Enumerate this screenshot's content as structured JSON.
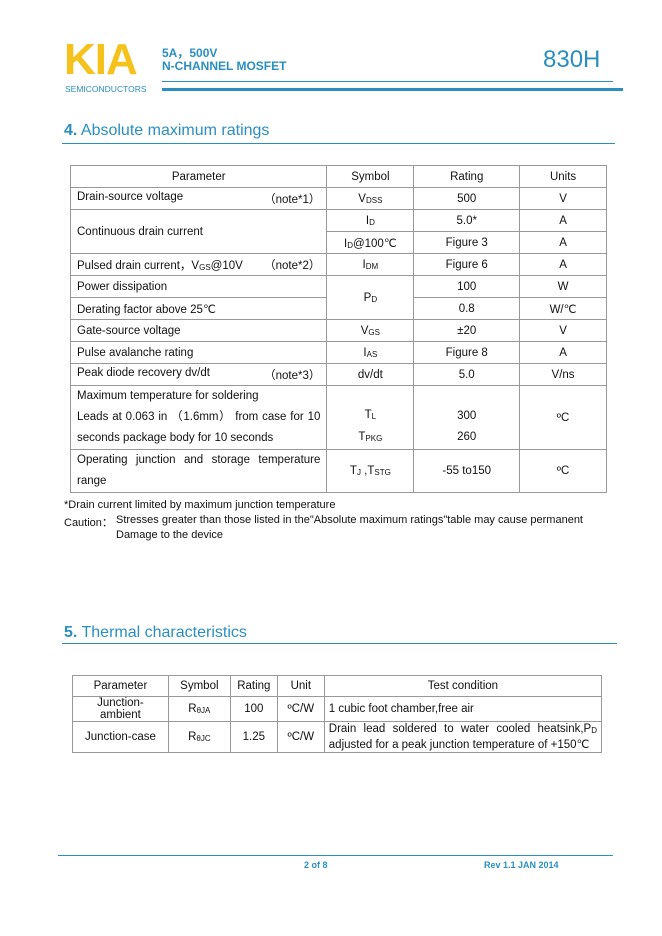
{
  "header": {
    "logo": "KIA",
    "logo_sub": "SEMICONDUCTORS",
    "line1": "5A，500V",
    "line2": "N-CHANNEL MOSFET",
    "part": "830H"
  },
  "section4": {
    "num": "4.",
    "title": "Absolute maximum ratings",
    "headers": [
      "Parameter",
      "Symbol",
      "Rating",
      "Units"
    ],
    "rows": {
      "vdss": {
        "param": "Drain-source voltage",
        "note": "（note*1）",
        "sym": "V",
        "sub": "DSS",
        "rating": "500",
        "unit": "V"
      },
      "id": {
        "param": "Continuous drain current",
        "sym": "I",
        "sub": "D",
        "rating": "5.0*",
        "unit": "A"
      },
      "id100": {
        "sym": "I",
        "sub": "D",
        "sym_tail": "@100℃",
        "rating": "Figure 3",
        "unit": "A"
      },
      "idm": {
        "param": "Pulsed drain current，V",
        "param_sub": "GS",
        "param_tail": "@10V",
        "note": "（note*2）",
        "sym": "I",
        "sub": "DM",
        "rating": "Figure 6",
        "unit": "A"
      },
      "pd": {
        "param": "Power dissipation",
        "sym": "P",
        "sub": "D",
        "rating": "100",
        "unit": "W"
      },
      "derate": {
        "param": "Derating factor above 25℃",
        "rating": "0.8",
        "unit": "W/℃"
      },
      "vgs": {
        "param": "Gate-source voltage",
        "sym": "V",
        "sub": "GS",
        "rating": "±20",
        "unit": "V"
      },
      "ias": {
        "param": "Pulse avalanche rating",
        "sym": "I",
        "sub": "AS",
        "rating": "Figure 8",
        "unit": "A"
      },
      "dvdt": {
        "param": "Peak diode recovery dv/dt",
        "note": "（note*3）",
        "sym": "dv/dt",
        "rating": "5.0",
        "unit": "V/ns"
      },
      "solder": {
        "param1": "Maximum temperature for soldering",
        "param2": "Leads at 0.063 in （1.6mm） from case for 10",
        "param3": "seconds package body for 10 seconds",
        "sym1": "T",
        "sub1": "L",
        "sym2": "T",
        "sub2": "PKG",
        "rating1": "300",
        "rating2": "260",
        "unit": "ºC"
      },
      "tj": {
        "param1": "Operating junction and storage temperature",
        "param2": "range",
        "sym1": "T",
        "sub1": "J",
        "sym_mid": " ,T",
        "sub2": "STG",
        "rating": "-55 to150",
        "unit": "ºC"
      }
    },
    "footnote": "*Drain current limited by maximum junction temperature",
    "caution_label": "Caution：",
    "caution1": "Stresses greater than those listed in the\"Absolute maximum ratings\"table may cause permanent",
    "caution2": "Damage to the device"
  },
  "section5": {
    "num": "5.",
    "title": "Thermal characteristics",
    "headers": [
      "Parameter",
      "Symbol",
      "Rating",
      "Unit",
      "Test condition"
    ],
    "rows": [
      {
        "param": "Junction-ambient",
        "sym": "R",
        "sub": "θJA",
        "rating": "100",
        "unit": "ºC/W",
        "cond": "1 cubic foot chamber,free air"
      },
      {
        "param": "Junction-case",
        "sym": "R",
        "sub": "θJC",
        "rating": "1.25",
        "unit": "ºC/W",
        "cond1": "Drain lead soldered to water cooled heatsink,P",
        "cond1_sub": "D",
        "cond2": "adjusted for a peak junction temperature of +150℃"
      }
    ]
  },
  "footer": {
    "page": "2 of 8",
    "rev": "Rev 1.1 JAN 2014"
  }
}
